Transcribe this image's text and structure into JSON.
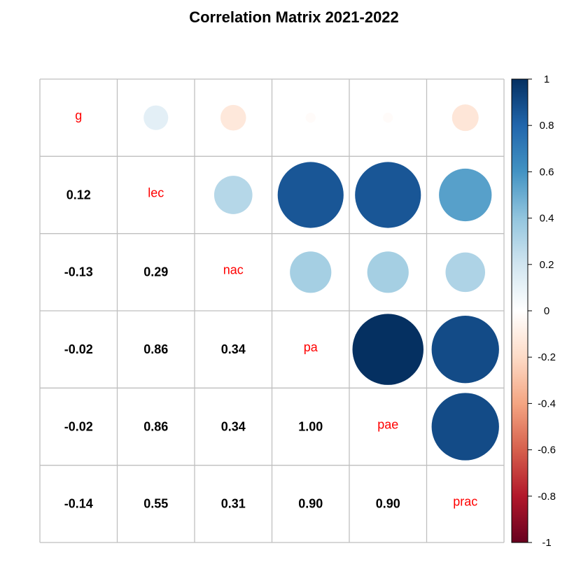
{
  "chart_data": {
    "type": "heatmap",
    "title": "Correlation Matrix 2021-2022",
    "variables": [
      "g",
      "lec",
      "nac",
      "pa",
      "pae",
      "prac"
    ],
    "matrix": [
      [
        1.0,
        0.12,
        -0.13,
        -0.02,
        -0.02,
        -0.14
      ],
      [
        0.12,
        1.0,
        0.29,
        0.86,
        0.86,
        0.55
      ],
      [
        -0.13,
        0.29,
        1.0,
        0.34,
        0.34,
        0.31
      ],
      [
        -0.02,
        0.86,
        0.34,
        1.0,
        1.0,
        0.9
      ],
      [
        -0.02,
        0.86,
        0.34,
        1.0,
        1.0,
        0.9
      ],
      [
        -0.14,
        0.55,
        0.31,
        0.9,
        0.9,
        1.0
      ]
    ],
    "lower_triangle": "number",
    "upper_triangle": "circle",
    "diagonal": "label",
    "label_color": "#ff0000",
    "colorbar": {
      "range": [
        -1,
        1
      ],
      "ticks": [
        "1",
        "0.8",
        "0.6",
        "0.4",
        "0.2",
        "0",
        "-0.2",
        "-0.4",
        "-0.6",
        "-0.8",
        "-1"
      ],
      "placement": "right"
    },
    "palette": {
      "neg1": "#67001F",
      "neg08": "#B2182B",
      "neg06": "#D6604D",
      "neg04": "#F4A582",
      "neg02": "#FDDBC7",
      "zero": "#FFFFFF",
      "pos02": "#D1E5F0",
      "pos04": "#92C5DE",
      "pos06": "#4393C3",
      "pos08": "#2166AC",
      "pos1": "#053061"
    }
  }
}
